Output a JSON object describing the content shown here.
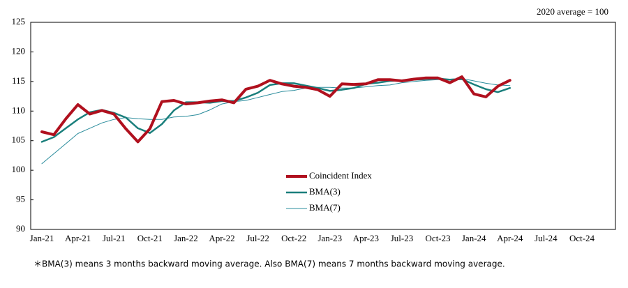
{
  "chart_data": {
    "type": "line",
    "annotation": "2020 average = 100",
    "footnote": "＊BMA(3) means 3 months backward moving average. Also BMA(7) means 7 months backward moving average.",
    "categories": [
      "Jan-21",
      null,
      null,
      "Apr-21",
      null,
      null,
      "Jul-21",
      null,
      null,
      "Oct-21",
      null,
      null,
      "Jan-22",
      null,
      null,
      "Apr-22",
      null,
      null,
      "Jul-22",
      null,
      null,
      "Oct-22",
      null,
      null,
      "Jan-23",
      null,
      null,
      "Apr-23",
      null,
      null,
      "Jul-23",
      null,
      null,
      "Oct-23",
      null,
      null,
      "Jan-24",
      null,
      null,
      "Apr-24",
      null,
      null,
      "Jul-24",
      null,
      null,
      "Oct-24",
      null,
      null
    ],
    "series": [
      {
        "name": "Coincident Index",
        "color": "#b0101e",
        "width": 4,
        "values": [
          106.5,
          106.0,
          108.7,
          111.1,
          109.5,
          110.1,
          109.5,
          107.0,
          104.8,
          107.0,
          111.6,
          111.8,
          111.2,
          111.4,
          111.7,
          111.9,
          111.4,
          113.7,
          114.2,
          115.2,
          114.6,
          114.2,
          114.0,
          113.6,
          112.5,
          114.6,
          114.5,
          114.6,
          115.3,
          115.3,
          115.1,
          115.4,
          115.6,
          115.6,
          114.8,
          115.8,
          112.9,
          112.4,
          114.2,
          115.2,
          null,
          null,
          null,
          null,
          null,
          null,
          null,
          null
        ]
      },
      {
        "name": "BMA(3)",
        "color": "#1a7f7c",
        "width": 2.5,
        "values": [
          104.8,
          105.6,
          107.1,
          108.6,
          109.8,
          110.2,
          109.7,
          108.9,
          107.1,
          106.3,
          107.8,
          110.1,
          111.5,
          111.5,
          111.4,
          111.7,
          111.7,
          112.3,
          113.1,
          114.4,
          114.7,
          114.7,
          114.3,
          113.9,
          113.4,
          113.6,
          113.9,
          114.6,
          114.8,
          115.1,
          115.2,
          115.3,
          115.4,
          115.5,
          115.3,
          115.4,
          114.5,
          113.7,
          113.2,
          113.9,
          null,
          null,
          null,
          null,
          null,
          null,
          null,
          null
        ]
      },
      {
        "name": "BMA(7)",
        "color": "#2a8c9c",
        "width": 1,
        "values": [
          101.1,
          102.8,
          104.5,
          106.2,
          107.1,
          108.0,
          108.6,
          108.9,
          108.7,
          108.6,
          108.6,
          109.0,
          109.1,
          109.4,
          110.2,
          111.2,
          111.6,
          111.8,
          112.3,
          112.8,
          113.3,
          113.5,
          113.9,
          114.0,
          114.0,
          113.9,
          113.9,
          114.1,
          114.3,
          114.4,
          114.8,
          115.0,
          115.2,
          115.3,
          115.4,
          115.5,
          115.1,
          114.7,
          114.4,
          114.3,
          null,
          null,
          null,
          null,
          null,
          null,
          null,
          null
        ]
      }
    ],
    "ylim": [
      90,
      125
    ],
    "yticks": [
      90,
      95,
      100,
      105,
      110,
      115,
      120,
      125
    ],
    "legend": "center"
  }
}
